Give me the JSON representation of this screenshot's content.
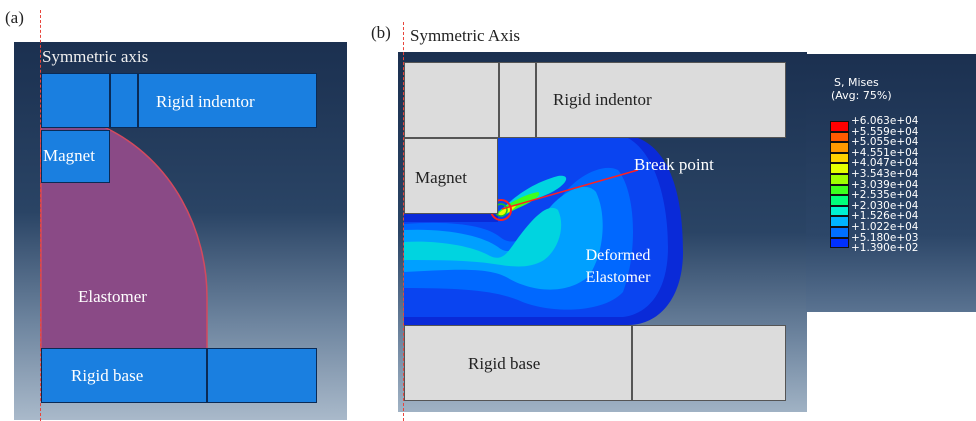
{
  "panel_a": {
    "label": "(a)",
    "axis_title": "Symmetric axis",
    "parts": {
      "rigid_indentor": "Rigid indentor",
      "magnet": "Magnet",
      "elastomer": "Elastomer",
      "rigid_base": "Rigid base"
    }
  },
  "panel_b": {
    "label": "(b)",
    "axis_title": "Symmetric Axis",
    "parts": {
      "rigid_indentor": "Rigid indentor",
      "magnet": "Magnet",
      "break_point": "Break point",
      "deformed_line1": "Deformed",
      "deformed_line2": "Elastomer",
      "rigid_base": "Rigid base"
    }
  },
  "legend": {
    "title1": "S, Mises",
    "title2": "(Avg: 75%)",
    "values": [
      "+6.063e+04",
      "+5.559e+04",
      "+5.055e+04",
      "+4.551e+04",
      "+4.047e+04",
      "+3.543e+04",
      "+3.039e+04",
      "+2.535e+04",
      "+2.030e+04",
      "+1.526e+04",
      "+1.022e+04",
      "+5.180e+03",
      "+1.390e+02"
    ],
    "colors": [
      "#ff0000",
      "#ff5a00",
      "#ff9a00",
      "#ffd200",
      "#e6ff00",
      "#9eff00",
      "#3cff1e",
      "#00ff7a",
      "#00f0d2",
      "#00b4ff",
      "#0070ff",
      "#0030ff",
      "#0000c8"
    ]
  },
  "colors": {
    "viewport_top": "#1b3050",
    "viewport_bottom": "#9fb1c4",
    "part_blue": "#1a7fe0",
    "elastomer": "#8a4a86",
    "axis_line": "#e8453c"
  }
}
